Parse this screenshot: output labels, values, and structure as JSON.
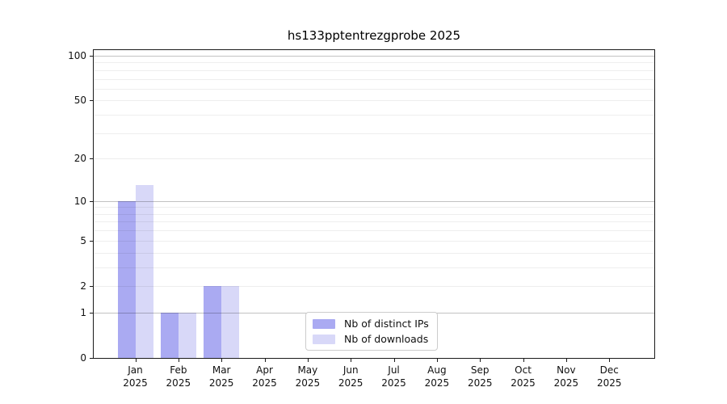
{
  "chart_data": {
    "type": "bar",
    "title": "hs133pptentrezgprobe 2025",
    "xlabel": "",
    "ylabel": "",
    "year": "2025",
    "months": [
      "Jan",
      "Feb",
      "Mar",
      "Apr",
      "May",
      "Jun",
      "Jul",
      "Aug",
      "Sep",
      "Oct",
      "Nov",
      "Dec"
    ],
    "categories": [
      "Jan 2025",
      "Feb 2025",
      "Mar 2025",
      "Apr 2025",
      "May 2025",
      "Jun 2025",
      "Jul 2025",
      "Aug 2025",
      "Sep 2025",
      "Oct 2025",
      "Nov 2025",
      "Dec 2025"
    ],
    "series": [
      {
        "name": "Nb of distinct IPs",
        "color": "#aaaaf2",
        "values": [
          10,
          1,
          2,
          0,
          0,
          0,
          0,
          0,
          0,
          0,
          0,
          0
        ]
      },
      {
        "name": "Nb of downloads",
        "color": "#d8d8f8",
        "values": [
          13,
          1,
          2,
          0,
          0,
          0,
          0,
          0,
          0,
          0,
          0,
          0
        ]
      }
    ],
    "y_axis": {
      "scale": "log10(1+v)",
      "ylim": [
        0,
        110
      ],
      "ticks": [
        {
          "label": "0",
          "value": 0
        },
        {
          "label": "1",
          "value": 1
        },
        {
          "label": "2",
          "value": 2
        },
        {
          "label": "5",
          "value": 5
        },
        {
          "label": "10",
          "value": 10
        },
        {
          "label": "20",
          "value": 20
        },
        {
          "label": "50",
          "value": 50
        },
        {
          "label": "100",
          "value": 100
        }
      ],
      "grid_minor": [
        2,
        3,
        4,
        5,
        6,
        7,
        8,
        9,
        20,
        30,
        40,
        50,
        60,
        70,
        80,
        90
      ],
      "grid_major": [
        1,
        10,
        100
      ]
    },
    "legend": {
      "position": "lower center",
      "entries": [
        "Nb of distinct IPs",
        "Nb of downloads"
      ]
    },
    "colors": {
      "grid_minor": "#ededed",
      "grid_major": "#c2c2c2",
      "axis": "#1a1a1a",
      "text": "#111111",
      "background": "#ffffff"
    }
  }
}
